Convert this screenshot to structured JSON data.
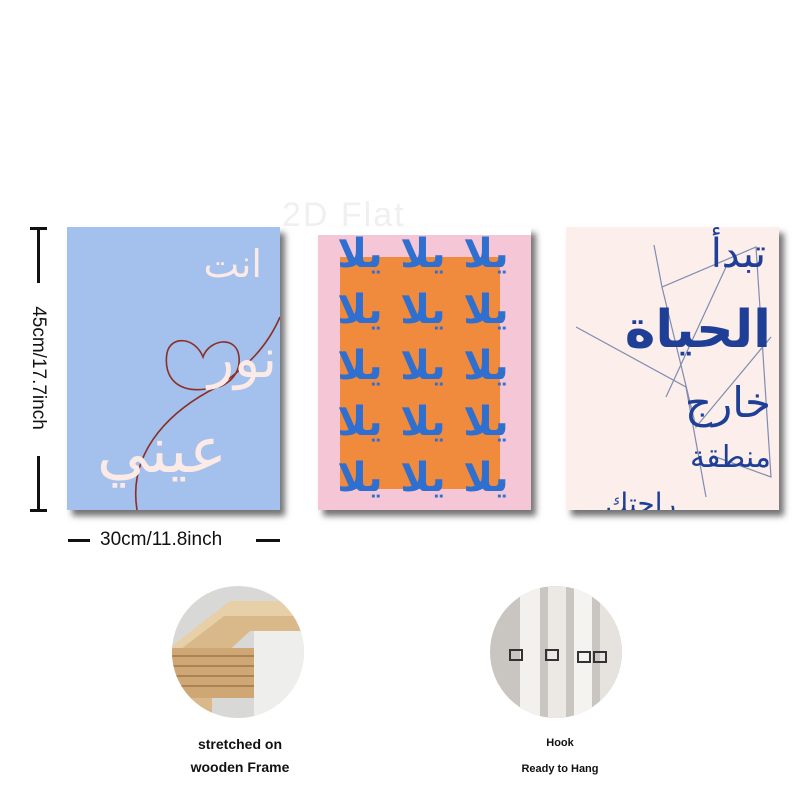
{
  "watermark": "2D Flat",
  "dimensions": {
    "height_label": "45cm/17.7inch",
    "width_label": "30cm/11.8inch"
  },
  "paintings": [
    {
      "lines": [
        "انت",
        "نور",
        "عيني"
      ],
      "background": "#a4c0ec",
      "text_color": "#fbeae6",
      "accent_color": "#8a2f26"
    },
    {
      "word": "يلا",
      "background": "#f4c6d6",
      "block_color": "#f08a3c",
      "text_color": "#2f6fd0"
    },
    {
      "lines": [
        "تبدأ",
        "الحياة",
        "خارج",
        "منطقة",
        "راحتك"
      ],
      "background": "#fbeeeb",
      "text_color": "#1f3f97",
      "line_color": "#7f8cb0"
    }
  ],
  "features": [
    {
      "caption": "stretched on\nwooden Frame"
    },
    {
      "caption_title": "Hook",
      "caption_sub": "Ready to Hang"
    }
  ]
}
